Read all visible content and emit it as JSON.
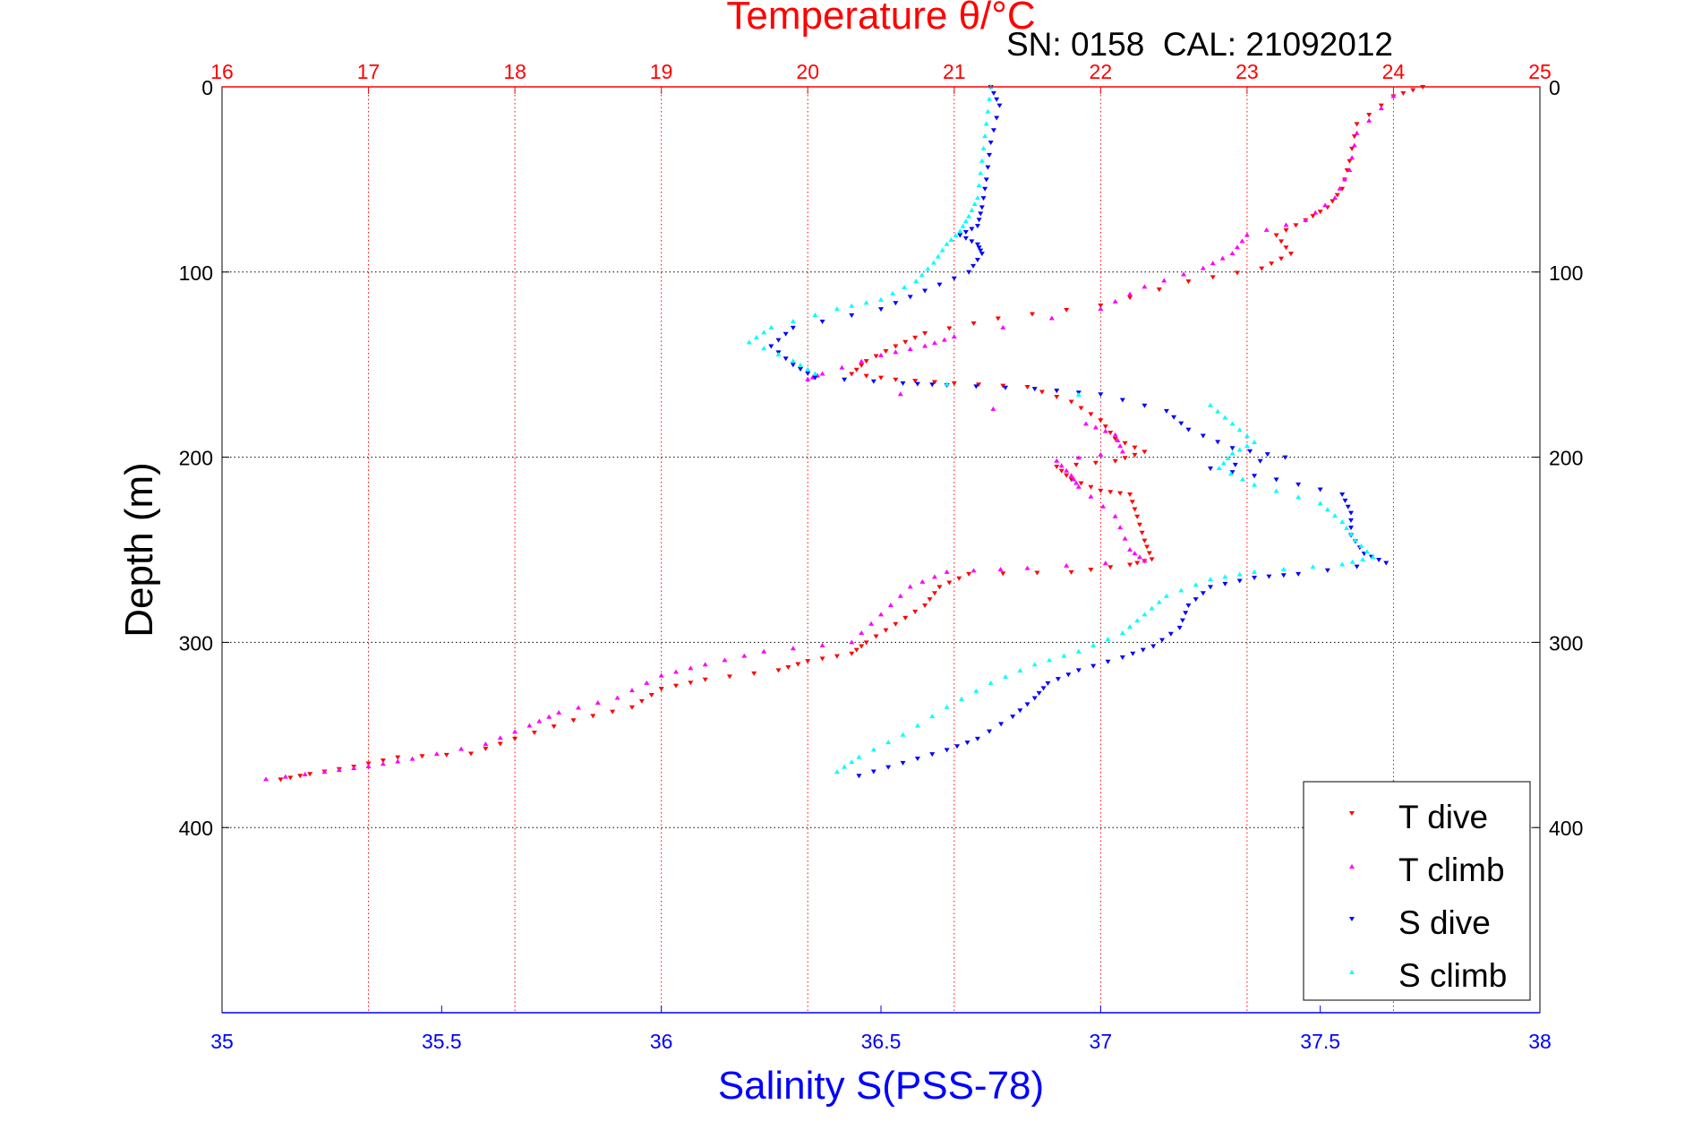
{
  "chart_data": {
    "type": "scatter",
    "title": "",
    "annotation": "SN: 0158  CAL: 21092012",
    "top_axis": {
      "label": "Temperature θ/°C",
      "range": [
        16,
        25
      ],
      "ticks": [
        16,
        17,
        18,
        19,
        20,
        21,
        22,
        23,
        24,
        25
      ],
      "color": "#ff0000"
    },
    "bottom_axis": {
      "label": "Salinity S(PSS-78)",
      "range": [
        35,
        38
      ],
      "ticks": [
        "35",
        "35.5",
        "36",
        "36.5",
        "37",
        "37.5",
        "38"
      ],
      "color": "#0000ff"
    },
    "y_axis": {
      "label": "Depth (m)",
      "range": [
        0,
        500
      ],
      "reversed": true,
      "ticks": [
        0,
        100,
        200,
        300,
        400
      ]
    },
    "grid": {
      "vertical": "temperature ticks, red dotted",
      "horizontal": "depth ticks, black dotted"
    },
    "legend": {
      "position": "bottom-right",
      "entries": [
        "T dive",
        "T climb",
        "S dive",
        "S climb"
      ]
    },
    "series": [
      {
        "name": "T dive",
        "axis": "temperature",
        "color": "#ff0000",
        "marker": "triangle-down",
        "points": [
          [
            24.2,
            0
          ],
          [
            24.0,
            5
          ],
          [
            23.75,
            20
          ],
          [
            23.7,
            40
          ],
          [
            23.65,
            55
          ],
          [
            23.55,
            65
          ],
          [
            23.4,
            72
          ],
          [
            23.2,
            80
          ],
          [
            23.3,
            90
          ],
          [
            23.1,
            98
          ],
          [
            22.6,
            105
          ],
          [
            22.0,
            118
          ],
          [
            21.3,
            125
          ],
          [
            20.8,
            133
          ],
          [
            20.6,
            140
          ],
          [
            20.4,
            148
          ],
          [
            20.3,
            155
          ],
          [
            20.6,
            158
          ],
          [
            21.0,
            160
          ],
          [
            21.5,
            162
          ],
          [
            21.8,
            170
          ],
          [
            22.0,
            180
          ],
          [
            22.1,
            190
          ],
          [
            22.3,
            197
          ],
          [
            22.1,
            202
          ],
          [
            21.7,
            205
          ],
          [
            21.8,
            212
          ],
          [
            22.0,
            218
          ],
          [
            22.2,
            220
          ],
          [
            22.25,
            232
          ],
          [
            22.3,
            245
          ],
          [
            22.35,
            255
          ],
          [
            22.2,
            258
          ],
          [
            21.8,
            262
          ],
          [
            21.1,
            263
          ],
          [
            20.9,
            270
          ],
          [
            20.8,
            280
          ],
          [
            20.6,
            290
          ],
          [
            20.4,
            300
          ],
          [
            20.3,
            306
          ],
          [
            20.0,
            310
          ],
          [
            19.8,
            315
          ],
          [
            19.3,
            320
          ],
          [
            19.0,
            325
          ],
          [
            18.8,
            335
          ],
          [
            18.4,
            342
          ],
          [
            18.0,
            352
          ],
          [
            17.7,
            360
          ],
          [
            17.2,
            362
          ],
          [
            16.9,
            367
          ],
          [
            16.6,
            371
          ],
          [
            16.4,
            374
          ]
        ]
      },
      {
        "name": "T climb",
        "axis": "temperature",
        "color": "#ff00ff",
        "marker": "triangle-up",
        "points": [
          [
            24.0,
            5
          ],
          [
            23.75,
            25
          ],
          [
            23.7,
            45
          ],
          [
            23.6,
            60
          ],
          [
            23.4,
            72
          ],
          [
            23.0,
            80
          ],
          [
            22.9,
            90
          ],
          [
            22.7,
            98
          ],
          [
            22.3,
            108
          ],
          [
            22.0,
            120
          ],
          [
            21.0,
            135
          ],
          [
            20.8,
            140
          ],
          [
            20.5,
            145
          ],
          [
            20.1,
            155
          ],
          [
            20.0,
            158
          ],
          [
            21.9,
            182
          ],
          [
            22.1,
            188
          ],
          [
            22.15,
            197
          ],
          [
            21.7,
            202
          ],
          [
            21.8,
            210
          ],
          [
            21.85,
            216
          ],
          [
            22.1,
            232
          ],
          [
            22.2,
            250
          ],
          [
            22.3,
            256
          ],
          [
            21.5,
            260
          ],
          [
            20.95,
            262
          ],
          [
            20.7,
            270
          ],
          [
            20.5,
            285
          ],
          [
            20.3,
            300
          ],
          [
            19.7,
            305
          ],
          [
            19.3,
            312
          ],
          [
            19.0,
            318
          ],
          [
            18.7,
            330
          ],
          [
            18.3,
            338
          ],
          [
            18.1,
            345
          ],
          [
            17.8,
            355
          ],
          [
            17.3,
            363
          ],
          [
            17.0,
            367
          ],
          [
            16.7,
            370
          ],
          [
            16.3,
            374
          ]
        ]
      },
      {
        "name": "S dive",
        "axis": "salinity",
        "color": "#0000ff",
        "marker": "triangle-down",
        "points": [
          [
            36.75,
            0
          ],
          [
            36.77,
            10
          ],
          [
            36.75,
            30
          ],
          [
            36.74,
            50
          ],
          [
            36.73,
            65
          ],
          [
            36.72,
            75
          ],
          [
            36.68,
            80
          ],
          [
            36.72,
            85
          ],
          [
            36.73,
            90
          ],
          [
            36.7,
            100
          ],
          [
            36.6,
            110
          ],
          [
            36.5,
            120
          ],
          [
            36.3,
            130
          ],
          [
            36.25,
            140
          ],
          [
            36.3,
            150
          ],
          [
            36.35,
            157
          ],
          [
            36.55,
            160
          ],
          [
            36.65,
            161
          ],
          [
            36.85,
            163
          ],
          [
            37.0,
            166
          ],
          [
            37.15,
            175
          ],
          [
            37.2,
            185
          ],
          [
            37.3,
            195
          ],
          [
            37.42,
            200
          ],
          [
            37.25,
            206
          ],
          [
            37.4,
            212
          ],
          [
            37.55,
            220
          ],
          [
            37.57,
            230
          ],
          [
            37.57,
            242
          ],
          [
            37.6,
            252
          ],
          [
            37.65,
            257
          ],
          [
            37.45,
            263
          ],
          [
            37.35,
            265
          ],
          [
            37.25,
            270
          ],
          [
            37.2,
            280
          ],
          [
            37.18,
            292
          ],
          [
            37.12,
            302
          ],
          [
            37.05,
            308
          ],
          [
            36.95,
            315
          ],
          [
            36.88,
            322
          ],
          [
            36.85,
            330
          ],
          [
            36.8,
            340
          ],
          [
            36.72,
            352
          ],
          [
            36.65,
            358
          ],
          [
            36.55,
            365
          ],
          [
            36.45,
            372
          ]
        ]
      },
      {
        "name": "S climb",
        "axis": "salinity",
        "color": "#00ffff",
        "marker": "triangle-up",
        "points": [
          [
            36.75,
            0
          ],
          [
            36.74,
            20
          ],
          [
            36.73,
            40
          ],
          [
            36.72,
            60
          ],
          [
            36.7,
            70
          ],
          [
            36.68,
            78
          ],
          [
            36.65,
            85
          ],
          [
            36.62,
            95
          ],
          [
            36.58,
            105
          ],
          [
            36.5,
            115
          ],
          [
            36.4,
            120
          ],
          [
            36.25,
            130
          ],
          [
            36.2,
            138
          ],
          [
            36.3,
            148
          ],
          [
            36.35,
            155
          ],
          [
            37.25,
            172
          ],
          [
            37.3,
            182
          ],
          [
            37.35,
            192
          ],
          [
            37.3,
            198
          ],
          [
            37.27,
            206
          ],
          [
            37.35,
            215
          ],
          [
            37.5,
            225
          ],
          [
            37.55,
            235
          ],
          [
            37.58,
            245
          ],
          [
            37.62,
            254
          ],
          [
            37.55,
            258
          ],
          [
            37.35,
            262
          ],
          [
            37.25,
            266
          ],
          [
            37.15,
            275
          ],
          [
            37.1,
            285
          ],
          [
            37.05,
            295
          ],
          [
            36.95,
            305
          ],
          [
            36.85,
            312
          ],
          [
            36.75,
            322
          ],
          [
            36.65,
            335
          ],
          [
            36.55,
            350
          ],
          [
            36.45,
            362
          ],
          [
            36.4,
            370
          ]
        ]
      }
    ]
  }
}
